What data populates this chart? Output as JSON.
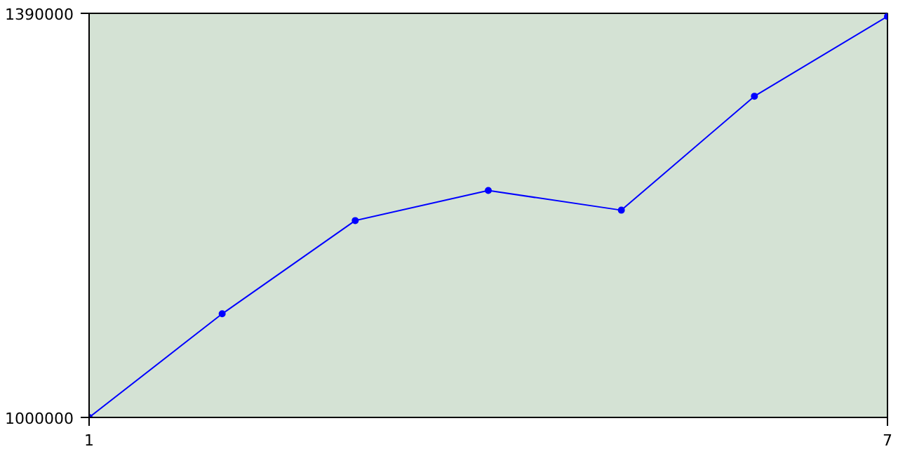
{
  "chart_data": {
    "type": "line",
    "x": [
      1,
      2,
      3,
      4,
      5,
      6,
      7
    ],
    "series": [
      {
        "color": "#0000ff",
        "values": [
          1000000,
          1100000,
          1190000,
          1219000,
          1200000,
          1310000,
          1387000
        ]
      }
    ],
    "xlim": [
      1,
      7
    ],
    "xticks": [
      1,
      7
    ],
    "ylim": [
      1000000,
      1390000
    ],
    "yticks": [
      1000000,
      1390000
    ],
    "marker": "circle",
    "line_style": "solid"
  }
}
